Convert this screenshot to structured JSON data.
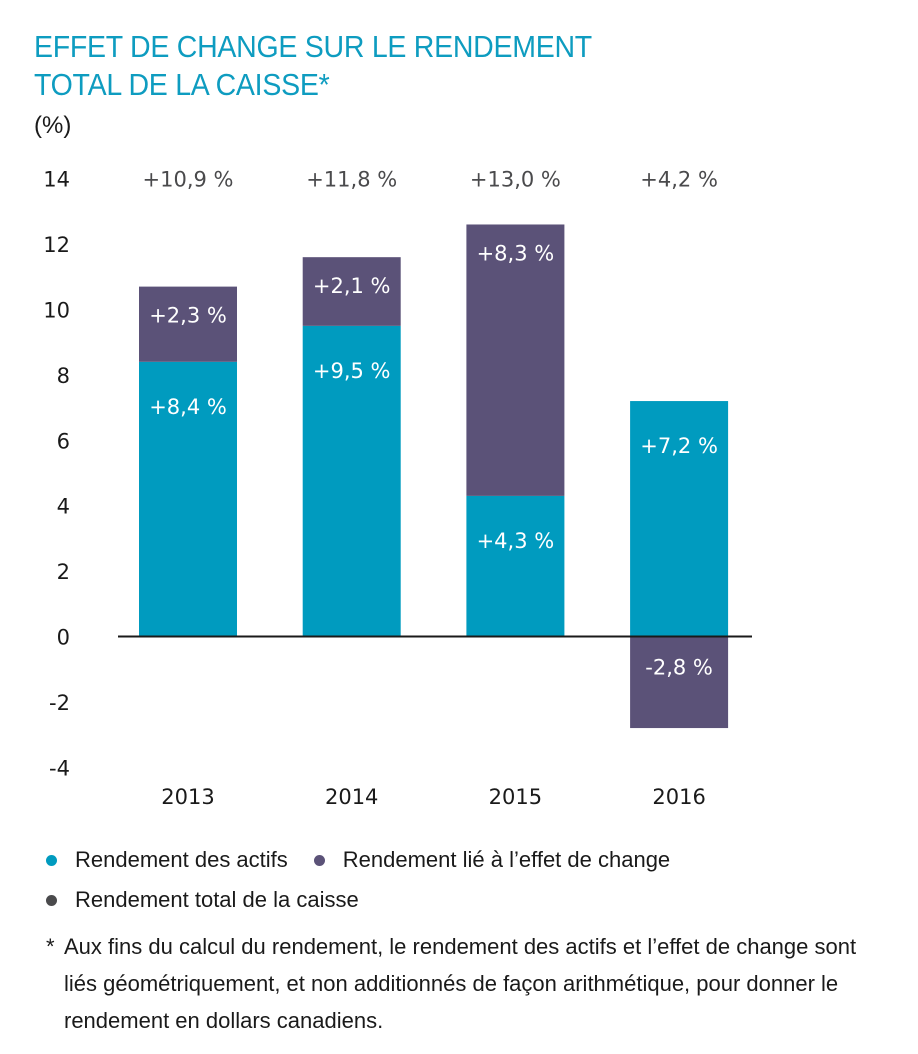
{
  "title_line1": "EFFET DE CHANGE SUR LE RENDEMENT",
  "title_line2": "TOTAL DE LA CAISSE*",
  "unit_label": "(%)",
  "colors": {
    "title": "#0e9cc0",
    "assets": "#009bbf",
    "fx": "#5b5278",
    "total": "#4a4a4c",
    "axis": "#1a1a1a"
  },
  "chart_data": {
    "type": "bar",
    "stacked": true,
    "title": "EFFET DE CHANGE SUR LE RENDEMENT TOTAL DE LA CAISSE*",
    "xlabel": "",
    "ylabel": "(%)",
    "categories": [
      "2013",
      "2014",
      "2015",
      "2016"
    ],
    "series": [
      {
        "name": "Rendement des actifs",
        "values": [
          8.4,
          9.5,
          4.3,
          7.2
        ],
        "labels": [
          "+8,4 %",
          "+9,5 %",
          "+4,3 %",
          "+7,2 %"
        ]
      },
      {
        "name": "Rendement lié à l’effet de change",
        "values": [
          2.3,
          2.1,
          8.3,
          -2.8
        ],
        "labels": [
          "+2,3 %",
          "+2,1 %",
          "+8,3 %",
          "-2,8 %"
        ]
      }
    ],
    "totals": {
      "name": "Rendement total de la caisse",
      "values": [
        10.9,
        11.8,
        13.0,
        4.2
      ],
      "labels": [
        "+10,9 %",
        "+11,8 %",
        "+13,0 %",
        "+4,2 %"
      ]
    },
    "ylim": [
      -4,
      14
    ],
    "yticks": [
      14,
      12,
      10,
      8,
      6,
      4,
      2,
      0,
      -2,
      -4
    ],
    "ytick_labels": [
      "14",
      "12",
      "10",
      "8",
      "6",
      "4",
      "2",
      "0",
      "-2",
      "-4"
    ],
    "grid": false,
    "legend_position": "bottom-left"
  },
  "legend": [
    {
      "label": "Rendement des actifs",
      "color": "#009bbf"
    },
    {
      "label": "Rendement lié à l’effet de change",
      "color": "#5b5278"
    },
    {
      "label": "Rendement total de la caisse",
      "color": "#4a4a4c"
    }
  ],
  "footnote": {
    "marker": "*",
    "text": "Aux fins du calcul du rendement, le rendement des actifs et l’effet de change sont liés géométriquement, et non additionnés de façon arithmétique, pour donner le rendement en dollars canadiens."
  }
}
